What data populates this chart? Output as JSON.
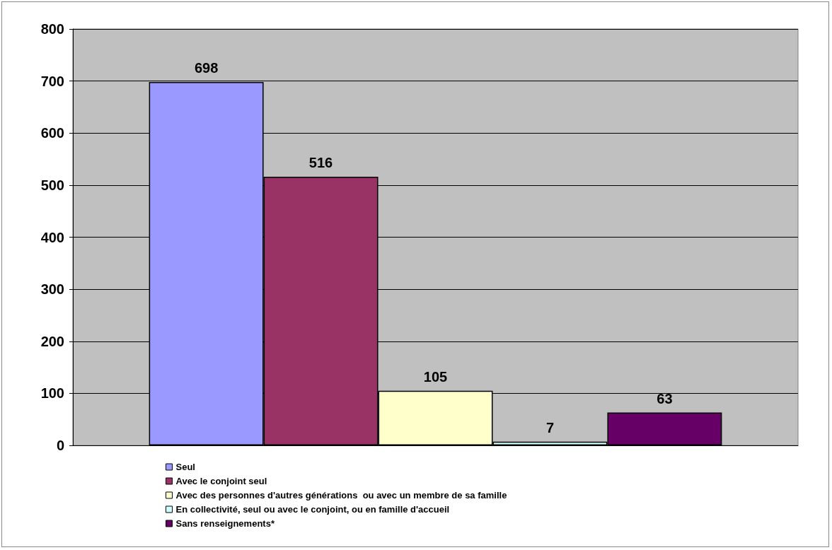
{
  "chart_data": {
    "type": "bar",
    "categories": [
      null
    ],
    "series": [
      {
        "name": "Seul",
        "color": "#9999ff",
        "values": [
          698
        ]
      },
      {
        "name": "Avec le conjoint seul",
        "color": "#993366",
        "values": [
          516
        ]
      },
      {
        "name": "Avec des personnes d'autres générations  ou avec un membre de sa famille",
        "color": "#ffffcc",
        "values": [
          105
        ]
      },
      {
        "name": "En collectivité, seul ou avec le conjoint, ou en famille d'accueil",
        "color": "#ccffff",
        "values": [
          7
        ]
      },
      {
        "name": "Sans renseignements*",
        "color": "#660066",
        "values": [
          63
        ]
      }
    ],
    "ylim": [
      0,
      800
    ],
    "yticks": [
      0,
      100,
      200,
      300,
      400,
      500,
      600,
      700,
      800
    ],
    "grid": "y",
    "legend": "bottom",
    "data_labels": true
  }
}
